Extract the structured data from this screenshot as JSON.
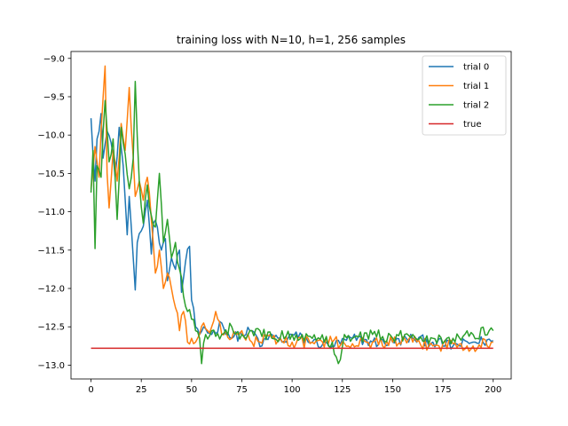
{
  "chart_data": {
    "type": "line",
    "title": "training loss with N=10, h=1, 256 samples",
    "xlabel": "",
    "ylabel": "",
    "xlim": [
      -9.95,
      208.95
    ],
    "ylim": [
      -13.18,
      -8.91
    ],
    "xticks": [
      0,
      25,
      50,
      75,
      100,
      125,
      150,
      175,
      200
    ],
    "yticks": [
      -13.0,
      -12.5,
      -12.0,
      -11.5,
      -11.0,
      -10.5,
      -10.0,
      -9.5,
      -9.0
    ],
    "xtick_labels": [
      "0",
      "25",
      "50",
      "75",
      "100",
      "125",
      "150",
      "175",
      "200"
    ],
    "ytick_labels": [
      "−13.0",
      "−12.5",
      "−12.0",
      "−11.5",
      "−11.0",
      "−10.5",
      "−10.0",
      "−9.5",
      "−9.0"
    ],
    "grid": false,
    "legend_position": "top-right",
    "series": [
      {
        "name": "trial 0",
        "color": "#1f77b4",
        "keypoints": [
          [
            0,
            -9.78
          ],
          [
            2,
            -10.6
          ],
          [
            3,
            -10.05
          ],
          [
            5,
            -9.72
          ],
          [
            6,
            -10.3
          ],
          [
            8,
            -9.95
          ],
          [
            10,
            -10.1
          ],
          [
            12,
            -10.55
          ],
          [
            14,
            -9.9
          ],
          [
            16,
            -10.4
          ],
          [
            18,
            -11.3
          ],
          [
            19,
            -10.8
          ],
          [
            21,
            -11.6
          ],
          [
            22,
            -12.02
          ],
          [
            23,
            -11.4
          ],
          [
            25,
            -11.25
          ],
          [
            27,
            -11.0
          ],
          [
            28,
            -10.85
          ],
          [
            30,
            -11.55
          ],
          [
            31,
            -11.15
          ],
          [
            33,
            -11.2
          ],
          [
            35,
            -11.5
          ],
          [
            37,
            -11.35
          ],
          [
            38,
            -11.9
          ],
          [
            40,
            -11.6
          ],
          [
            42,
            -11.75
          ],
          [
            44,
            -11.5
          ],
          [
            45,
            -12.05
          ],
          [
            47,
            -11.65
          ],
          [
            49,
            -11.45
          ],
          [
            50,
            -12.15
          ],
          [
            52,
            -12.5
          ],
          [
            54,
            -12.6
          ],
          [
            56,
            -12.5
          ],
          [
            60,
            -12.6
          ],
          [
            65,
            -12.45
          ],
          [
            70,
            -12.65
          ],
          [
            75,
            -12.6
          ],
          [
            80,
            -12.55
          ],
          [
            85,
            -12.75
          ],
          [
            90,
            -12.6
          ],
          [
            95,
            -12.7
          ],
          [
            100,
            -12.6
          ],
          [
            110,
            -12.7
          ],
          [
            120,
            -12.75
          ],
          [
            130,
            -12.65
          ],
          [
            140,
            -12.7
          ],
          [
            150,
            -12.7
          ],
          [
            160,
            -12.65
          ],
          [
            170,
            -12.7
          ],
          [
            180,
            -12.75
          ],
          [
            190,
            -12.7
          ],
          [
            200,
            -12.68
          ]
        ],
        "noise": 0.07
      },
      {
        "name": "trial 1",
        "color": "#ff7f0e",
        "keypoints": [
          [
            0,
            -10.7
          ],
          [
            2,
            -10.15
          ],
          [
            4,
            -10.55
          ],
          [
            5,
            -9.95
          ],
          [
            7,
            -9.1
          ],
          [
            8,
            -10.5
          ],
          [
            9,
            -10.95
          ],
          [
            11,
            -10.2
          ],
          [
            13,
            -10.6
          ],
          [
            15,
            -9.85
          ],
          [
            17,
            -10.2
          ],
          [
            19,
            -9.38
          ],
          [
            20,
            -9.9
          ],
          [
            22,
            -10.8
          ],
          [
            24,
            -10.6
          ],
          [
            26,
            -10.85
          ],
          [
            28,
            -10.55
          ],
          [
            30,
            -11.1
          ],
          [
            32,
            -11.8
          ],
          [
            34,
            -11.5
          ],
          [
            36,
            -12.0
          ],
          [
            38,
            -11.8
          ],
          [
            40,
            -12.0
          ],
          [
            42,
            -12.25
          ],
          [
            44,
            -12.55
          ],
          [
            46,
            -12.3
          ],
          [
            48,
            -12.7
          ],
          [
            50,
            -12.65
          ],
          [
            52,
            -12.7
          ],
          [
            54,
            -12.6
          ],
          [
            56,
            -12.45
          ],
          [
            58,
            -12.55
          ],
          [
            60,
            -12.5
          ],
          [
            62,
            -12.3
          ],
          [
            65,
            -12.6
          ],
          [
            70,
            -12.65
          ],
          [
            75,
            -12.55
          ],
          [
            80,
            -12.7
          ],
          [
            90,
            -12.65
          ],
          [
            100,
            -12.7
          ],
          [
            110,
            -12.7
          ],
          [
            120,
            -12.7
          ],
          [
            130,
            -12.72
          ],
          [
            140,
            -12.7
          ],
          [
            150,
            -12.7
          ],
          [
            160,
            -12.7
          ],
          [
            170,
            -12.75
          ],
          [
            180,
            -12.72
          ],
          [
            190,
            -12.75
          ],
          [
            200,
            -12.7
          ]
        ],
        "noise": 0.08
      },
      {
        "name": "trial 2",
        "color": "#2ca02c",
        "keypoints": [
          [
            0,
            -10.75
          ],
          [
            1,
            -10.2
          ],
          [
            2,
            -11.48
          ],
          [
            3,
            -10.4
          ],
          [
            5,
            -10.55
          ],
          [
            7,
            -9.55
          ],
          [
            9,
            -10.35
          ],
          [
            11,
            -10.05
          ],
          [
            13,
            -11.1
          ],
          [
            15,
            -9.9
          ],
          [
            17,
            -10.25
          ],
          [
            19,
            -10.7
          ],
          [
            21,
            -10.3
          ],
          [
            22,
            -9.3
          ],
          [
            24,
            -10.6
          ],
          [
            26,
            -11.15
          ],
          [
            28,
            -10.65
          ],
          [
            30,
            -11.05
          ],
          [
            32,
            -11.2
          ],
          [
            34,
            -10.5
          ],
          [
            36,
            -11.4
          ],
          [
            38,
            -11.1
          ],
          [
            40,
            -11.6
          ],
          [
            42,
            -11.4
          ],
          [
            44,
            -11.75
          ],
          [
            46,
            -12.1
          ],
          [
            48,
            -12.3
          ],
          [
            50,
            -12.4
          ],
          [
            52,
            -12.55
          ],
          [
            54,
            -12.65
          ],
          [
            55,
            -12.98
          ],
          [
            57,
            -12.6
          ],
          [
            60,
            -12.55
          ],
          [
            65,
            -12.6
          ],
          [
            70,
            -12.5
          ],
          [
            75,
            -12.6
          ],
          [
            80,
            -12.55
          ],
          [
            90,
            -12.65
          ],
          [
            100,
            -12.6
          ],
          [
            110,
            -12.65
          ],
          [
            120,
            -12.7
          ],
          [
            123,
            -12.98
          ],
          [
            126,
            -12.6
          ],
          [
            130,
            -12.65
          ],
          [
            140,
            -12.6
          ],
          [
            150,
            -12.65
          ],
          [
            160,
            -12.6
          ],
          [
            170,
            -12.65
          ],
          [
            180,
            -12.65
          ],
          [
            190,
            -12.6
          ],
          [
            198,
            -12.55
          ],
          [
            200,
            -12.55
          ]
        ],
        "noise": 0.08
      },
      {
        "name": "true",
        "color": "#d62728",
        "keypoints": [
          [
            0,
            -12.78
          ],
          [
            200,
            -12.78
          ]
        ],
        "noise": 0
      }
    ]
  }
}
